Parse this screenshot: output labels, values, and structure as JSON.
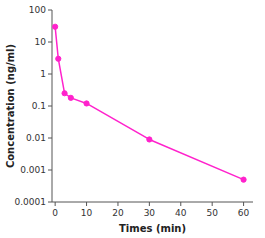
{
  "chart_data": {
    "type": "line",
    "x": [
      0,
      1,
      3,
      5,
      10,
      30,
      60
    ],
    "values": [
      30,
      3.0,
      0.25,
      0.18,
      0.12,
      0.009,
      0.0005
    ],
    "color": "#FF22CC",
    "marker": "circle",
    "xlabel": "Times (min)",
    "ylabel": "Concentration (ng/ml)",
    "xlim": [
      -1,
      63
    ],
    "ylim": [
      0.0001,
      100
    ],
    "xticks": [
      0,
      10,
      20,
      30,
      40,
      50,
      60
    ],
    "yticks": [
      0.0001,
      0.001,
      0.01,
      0.1,
      1,
      10,
      100
    ],
    "log": "y",
    "grid": false
  }
}
